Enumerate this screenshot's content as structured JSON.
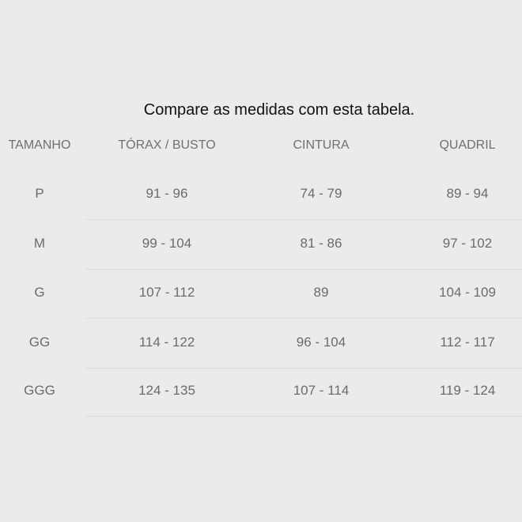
{
  "title": "Compare as medidas com esta tabela.",
  "headers": [
    "TAMANHO",
    "TÓRAX / BUSTO",
    "CINTURA",
    "QUADRIL"
  ],
  "rows": [
    [
      "P",
      "91 - 96",
      "74 - 79",
      "89 - 94"
    ],
    [
      "M",
      "99 - 104",
      "81 - 86",
      "97 - 102"
    ],
    [
      "G",
      "107 - 112",
      "89",
      "104 - 109"
    ],
    [
      "GG",
      "114 - 122",
      "96 - 104",
      "112 - 117"
    ],
    [
      "GGG",
      "124 - 135",
      "107 - 114",
      "119 - 124"
    ]
  ]
}
